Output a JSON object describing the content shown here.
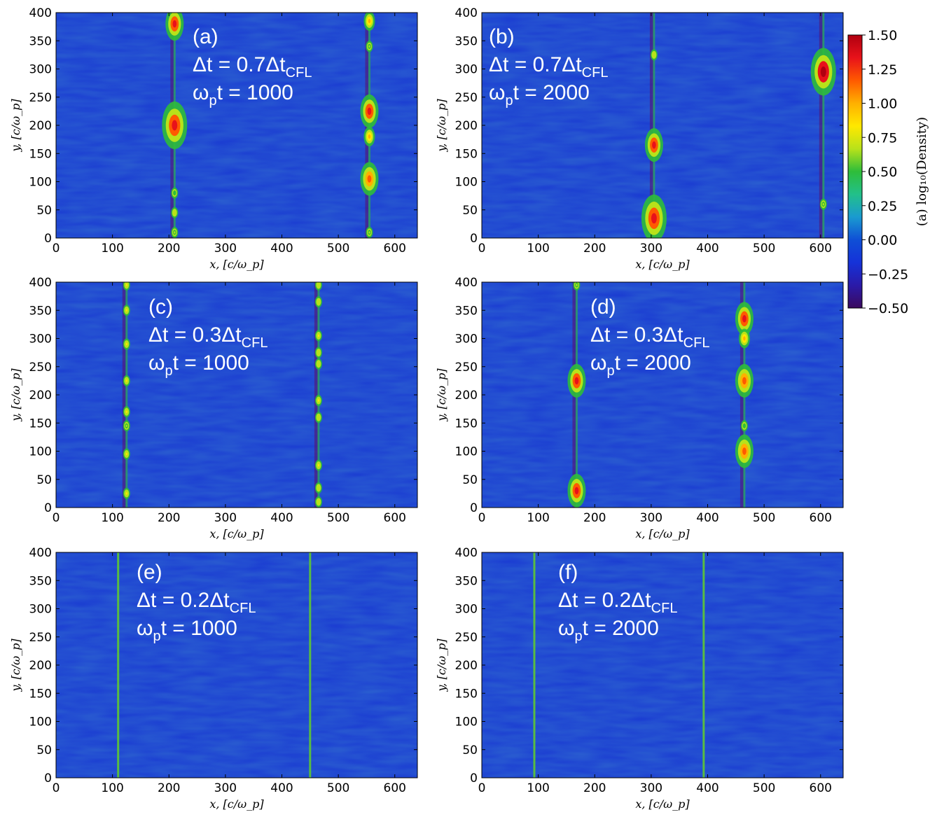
{
  "chart_data": [
    {
      "type": "heatmap",
      "panel": "(a)",
      "annotation": {
        "label": "(a)",
        "dt_prefix": "Δt = 0.7Δt",
        "dt_sub": "CFL",
        "time_prefix": "ω",
        "time_sub": "p",
        "time_suffix": "t = 1000"
      },
      "xlabel": "x, [c/ω_p]",
      "ylabel": "y, [c/ω_p]",
      "xlim": [
        0,
        640
      ],
      "ylim": [
        0,
        400
      ],
      "xticks": [
        "0",
        "100",
        "200",
        "300",
        "400",
        "500",
        "600"
      ],
      "yticks": [
        "0",
        "50",
        "100",
        "150",
        "200",
        "250",
        "300",
        "350",
        "400"
      ],
      "filaments": [
        {
          "x": 210,
          "blobs": [
            {
              "y": 380,
              "peak": 1.3
            },
            {
              "y": 200,
              "peak": 1.4
            },
            {
              "y": 80,
              "peak": 0.5
            },
            {
              "y": 45,
              "peak": 0.7
            },
            {
              "y": 10,
              "peak": 0.6
            }
          ]
        },
        {
          "x": 555,
          "blobs": [
            {
              "y": 385,
              "peak": 1.0
            },
            {
              "y": 340,
              "peak": 0.6
            },
            {
              "y": 225,
              "peak": 1.3
            },
            {
              "y": 180,
              "peak": 1.0
            },
            {
              "y": 105,
              "peak": 1.2
            },
            {
              "y": 10,
              "peak": 0.6
            }
          ]
        }
      ]
    },
    {
      "type": "heatmap",
      "panel": "(b)",
      "annotation": {
        "label": "(b)",
        "dt_prefix": "Δt = 0.7Δt",
        "dt_sub": "CFL",
        "time_prefix": "ω",
        "time_sub": "p",
        "time_suffix": "t = 2000"
      },
      "xlabel": "x, [c/ω_p]",
      "ylabel": "y, [c/ω_p]",
      "xlim": [
        0,
        640
      ],
      "ylim": [
        0,
        400
      ],
      "xticks": [
        "0",
        "100",
        "200",
        "300",
        "400",
        "500",
        "600"
      ],
      "yticks": [
        "0",
        "50",
        "100",
        "150",
        "200",
        "250",
        "300",
        "350",
        "400"
      ],
      "filaments": [
        {
          "x": 305,
          "blobs": [
            {
              "y": 325,
              "peak": 0.7
            },
            {
              "y": 165,
              "peak": 1.3
            },
            {
              "y": 35,
              "peak": 1.4
            }
          ]
        },
        {
          "x": 605,
          "blobs": [
            {
              "y": 295,
              "peak": 1.5
            },
            {
              "y": 60,
              "peak": 0.6
            }
          ]
        }
      ]
    },
    {
      "type": "heatmap",
      "panel": "(c)",
      "annotation": {
        "label": "(c)",
        "dt_prefix": "Δt = 0.3Δt",
        "dt_sub": "CFL",
        "time_prefix": "ω",
        "time_sub": "p",
        "time_suffix": "t = 1000"
      },
      "xlabel": "x, [c/ω_p]",
      "ylabel": "y, [c/ω_p]",
      "xlim": [
        0,
        640
      ],
      "ylim": [
        0,
        400
      ],
      "xticks": [
        "0",
        "100",
        "200",
        "300",
        "400",
        "500",
        "600"
      ],
      "yticks": [
        "0",
        "50",
        "100",
        "150",
        "200",
        "250",
        "300",
        "350",
        "400"
      ],
      "filaments": [
        {
          "x": 125,
          "blobs": [
            {
              "y": 395,
              "peak": 0.8
            },
            {
              "y": 350,
              "peak": 0.8
            },
            {
              "y": 290,
              "peak": 0.8
            },
            {
              "y": 225,
              "peak": 0.8
            },
            {
              "y": 170,
              "peak": 0.8
            },
            {
              "y": 145,
              "peak": 0.6
            },
            {
              "y": 95,
              "peak": 0.8
            },
            {
              "y": 25,
              "peak": 0.8
            }
          ]
        },
        {
          "x": 465,
          "blobs": [
            {
              "y": 395,
              "peak": 0.7
            },
            {
              "y": 365,
              "peak": 0.7
            },
            {
              "y": 305,
              "peak": 0.8
            },
            {
              "y": 275,
              "peak": 0.7
            },
            {
              "y": 255,
              "peak": 0.7
            },
            {
              "y": 190,
              "peak": 0.8
            },
            {
              "y": 160,
              "peak": 0.7
            },
            {
              "y": 75,
              "peak": 0.8
            },
            {
              "y": 35,
              "peak": 0.7
            },
            {
              "y": 10,
              "peak": 0.7
            }
          ]
        }
      ]
    },
    {
      "type": "heatmap",
      "panel": "(d)",
      "annotation": {
        "label": "(d)",
        "dt_prefix": "Δt = 0.3Δt",
        "dt_sub": "CFL",
        "time_prefix": "ω",
        "time_sub": "p",
        "time_suffix": "t = 2000"
      },
      "xlabel": "x, [c/ω_p]",
      "ylabel": "y, [c/ω_p]",
      "xlim": [
        0,
        640
      ],
      "ylim": [
        0,
        400
      ],
      "xticks": [
        "0",
        "100",
        "200",
        "300",
        "400",
        "500",
        "600"
      ],
      "yticks": [
        "0",
        "50",
        "100",
        "150",
        "200",
        "250",
        "300",
        "350",
        "400"
      ],
      "filaments": [
        {
          "x": 168,
          "blobs": [
            {
              "y": 395,
              "peak": 0.6
            },
            {
              "y": 225,
              "peak": 1.3
            },
            {
              "y": 30,
              "peak": 1.3
            }
          ]
        },
        {
          "x": 465,
          "blobs": [
            {
              "y": 335,
              "peak": 1.3
            },
            {
              "y": 300,
              "peak": 1.0
            },
            {
              "y": 225,
              "peak": 1.2
            },
            {
              "y": 145,
              "peak": 0.5
            },
            {
              "y": 100,
              "peak": 1.2
            }
          ]
        }
      ]
    },
    {
      "type": "heatmap",
      "panel": "(e)",
      "annotation": {
        "label": "(e)",
        "dt_prefix": "Δt = 0.2Δt",
        "dt_sub": "CFL",
        "time_prefix": "ω",
        "time_sub": "p",
        "time_suffix": "t = 1000"
      },
      "xlabel": "x, [c/ω_p]",
      "ylabel": "y, [c/ω_p]",
      "xlim": [
        0,
        640
      ],
      "ylim": [
        0,
        400
      ],
      "xticks": [
        "0",
        "100",
        "200",
        "300",
        "400",
        "500",
        "600"
      ],
      "yticks": [
        "0",
        "50",
        "100",
        "150",
        "200",
        "250",
        "300",
        "350",
        "400"
      ],
      "filaments": [
        {
          "x": 110,
          "blobs": []
        },
        {
          "x": 450,
          "blobs": []
        }
      ]
    },
    {
      "type": "heatmap",
      "panel": "(f)",
      "annotation": {
        "label": "(f)",
        "dt_prefix": "Δt = 0.2Δt",
        "dt_sub": "CFL",
        "time_prefix": "ω",
        "time_sub": "p",
        "time_suffix": "t = 2000"
      },
      "xlabel": "x, [c/ω_p]",
      "ylabel": "y, [c/ω_p]",
      "xlim": [
        0,
        640
      ],
      "ylim": [
        0,
        400
      ],
      "xticks": [
        "0",
        "100",
        "200",
        "300",
        "400",
        "500",
        "600"
      ],
      "yticks": [
        "0",
        "50",
        "100",
        "150",
        "200",
        "250",
        "300",
        "350",
        "400"
      ],
      "filaments": [
        {
          "x": 93,
          "blobs": []
        },
        {
          "x": 393,
          "blobs": []
        }
      ]
    }
  ],
  "colorbar": {
    "label": "(a) log₁₀(Density)",
    "range": [
      -0.5,
      1.5
    ],
    "ticks": [
      "1.50",
      "1.25",
      "1.00",
      "0.75",
      "0.50",
      "0.25",
      "0.00",
      "−0.25",
      "−0.50"
    ],
    "colormap": [
      "#3b0a5e",
      "#2a1aa8",
      "#1532d8",
      "#0f4fd6",
      "#1a9ad0",
      "#22c08a",
      "#2ebd3a",
      "#b8e21a",
      "#ffe800",
      "#ffb000",
      "#ff5a00",
      "#e8121a",
      "#b00010"
    ]
  },
  "background_color": "#1a3ad2"
}
